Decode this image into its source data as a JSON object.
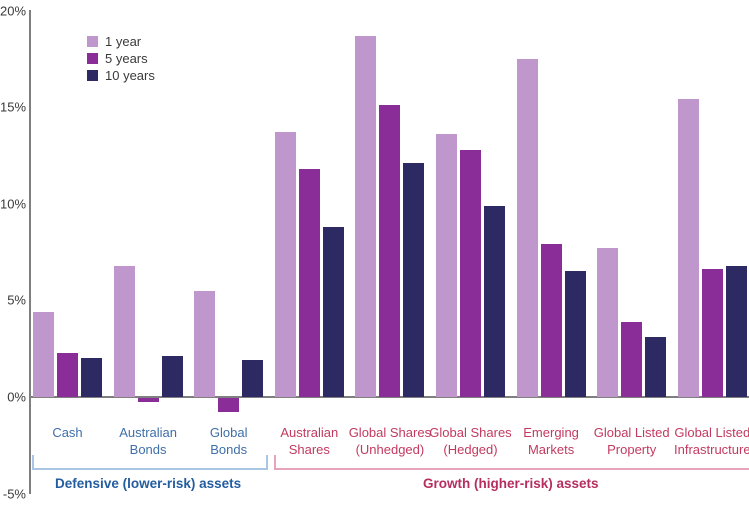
{
  "chart_data": {
    "type": "bar",
    "title": "",
    "xlabel": "",
    "ylabel": "",
    "grid": false,
    "legend_position": "top-left",
    "ylim": [
      -5,
      20
    ],
    "y_ticks": [
      {
        "label": "20%",
        "value": 20
      },
      {
        "label": "15%",
        "value": 15
      },
      {
        "label": "10%",
        "value": 10
      },
      {
        "label": "5%",
        "value": 5
      },
      {
        "label": "0%",
        "value": 0
      },
      {
        "label": "-5%",
        "value": -5
      }
    ],
    "categories": [
      "Cash",
      "Australian Bonds",
      "Global Bonds",
      "Australian Shares",
      "Global Shares (Unhedged)",
      "Global Shares (Hedged)",
      "Emerging Markets",
      "Global Listed Property",
      "Global Listed Infrastructure"
    ],
    "category_label_lines": [
      [
        "Cash"
      ],
      [
        "Australian",
        "Bonds"
      ],
      [
        "Global",
        "Bonds"
      ],
      [
        "Australian",
        "Shares"
      ],
      [
        "Global Shares",
        "(Unhedged)"
      ],
      [
        "Global Shares",
        "(Hedged)"
      ],
      [
        "Emerging",
        "Markets"
      ],
      [
        "Global Listed",
        "Property"
      ],
      [
        "Global Listed",
        "Infrastructure"
      ]
    ],
    "series": [
      {
        "name": "1 year",
        "color": "#bf97cd",
        "values": [
          4.4,
          6.8,
          5.5,
          13.7,
          18.7,
          13.6,
          17.5,
          7.7,
          15.4
        ]
      },
      {
        "name": "5 years",
        "color": "#8a2d98",
        "values": [
          2.3,
          -0.2,
          -0.7,
          11.8,
          15.1,
          12.8,
          7.9,
          3.9,
          6.6
        ]
      },
      {
        "name": "10 years",
        "color": "#2d2a63",
        "values": [
          2.0,
          2.1,
          1.9,
          8.8,
          12.1,
          9.9,
          6.5,
          3.1,
          6.8
        ]
      }
    ],
    "sections": [
      {
        "id": "defensive",
        "title": "Defensive (lower-risk) assets",
        "start_group": 0,
        "end_group": 2,
        "label_color": "#3f6fa9",
        "title_color": "#235d9f",
        "bracket_color": "#a9c7e5"
      },
      {
        "id": "growth",
        "title": "Growth (higher-risk) assets",
        "start_group": 3,
        "end_group": 8,
        "label_color": "#c23a5f",
        "title_color": "#b52e5e",
        "bracket_color": "#e7a3b7"
      }
    ],
    "colors": {
      "axis_line": "#7f7f7f",
      "tick_text": "#3a3a3a",
      "legend_text": "#3a3a3a"
    }
  }
}
